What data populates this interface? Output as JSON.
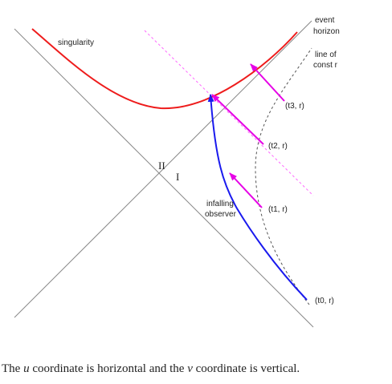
{
  "labels": {
    "singularity": "singularity",
    "event_horizon_1": "event",
    "event_horizon_2": "horizon",
    "const_r_1": "line of",
    "const_r_2": "const r",
    "region_2": "II",
    "region_1": "I",
    "observer_1": "infalling",
    "observer_2": "observer",
    "t0": "(t0, r)",
    "t1": "(t1, r)",
    "t2": "(t2, r)",
    "t3": "(t3, r)"
  },
  "caption": {
    "part1": "The ",
    "u": "u",
    "part2": " coordinate is horizontal and the ",
    "v": "v",
    "part3": " coordinate is vertical."
  },
  "colors": {
    "singularity": "#ee1c1c",
    "observer": "#1a1aee",
    "signal": "#ff00ff",
    "axes": "#888888",
    "const_r": "#555555"
  }
}
